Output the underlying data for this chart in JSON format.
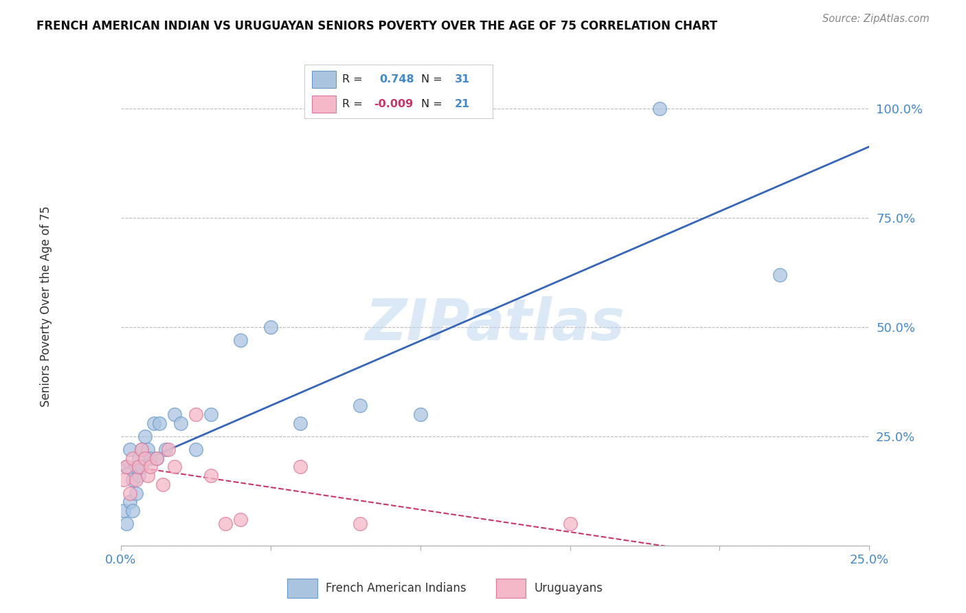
{
  "title": "FRENCH AMERICAN INDIAN VS URUGUAYAN SENIORS POVERTY OVER THE AGE OF 75 CORRELATION CHART",
  "source": "Source: ZipAtlas.com",
  "ylabel": "Seniors Poverty Over the Age of 75",
  "watermark": "ZIPatlas",
  "blue_R": 0.748,
  "blue_N": 31,
  "pink_R": -0.009,
  "pink_N": 21,
  "blue_color": "#aac4e0",
  "blue_edge_color": "#6699cc",
  "blue_line_color": "#3366bb",
  "pink_color": "#f5b8c8",
  "pink_edge_color": "#dd7799",
  "pink_line_color": "#cc3366",
  "background_color": "#ffffff",
  "grid_color": "#bbbbbb",
  "axis_label_color": "#4488cc",
  "title_color": "#111111",
  "blue_x": [
    0.001,
    0.002,
    0.002,
    0.003,
    0.003,
    0.004,
    0.004,
    0.005,
    0.005,
    0.006,
    0.006,
    0.007,
    0.007,
    0.008,
    0.009,
    0.01,
    0.011,
    0.012,
    0.013,
    0.015,
    0.018,
    0.02,
    0.025,
    0.03,
    0.04,
    0.05,
    0.06,
    0.08,
    0.1,
    0.18,
    0.22
  ],
  "blue_y": [
    0.08,
    0.05,
    0.18,
    0.1,
    0.22,
    0.08,
    0.15,
    0.18,
    0.12,
    0.2,
    0.16,
    0.22,
    0.18,
    0.25,
    0.22,
    0.2,
    0.28,
    0.2,
    0.28,
    0.22,
    0.3,
    0.28,
    0.22,
    0.3,
    0.47,
    0.5,
    0.28,
    0.32,
    0.3,
    1.0,
    0.62
  ],
  "pink_x": [
    0.001,
    0.002,
    0.003,
    0.004,
    0.005,
    0.006,
    0.007,
    0.008,
    0.009,
    0.01,
    0.012,
    0.014,
    0.016,
    0.018,
    0.025,
    0.03,
    0.035,
    0.04,
    0.06,
    0.08,
    0.15
  ],
  "pink_y": [
    0.15,
    0.18,
    0.12,
    0.2,
    0.15,
    0.18,
    0.22,
    0.2,
    0.16,
    0.18,
    0.2,
    0.14,
    0.22,
    0.18,
    0.3,
    0.16,
    0.05,
    0.06,
    0.18,
    0.05,
    0.05
  ],
  "xlim": [
    0.0,
    0.25
  ],
  "ylim": [
    0.0,
    1.08
  ],
  "yticks": [
    0.0,
    0.25,
    0.5,
    0.75,
    1.0
  ],
  "ytick_labels": [
    "",
    "25.0%",
    "50.0%",
    "75.0%",
    "100.0%"
  ],
  "xticks": [
    0.0,
    0.05,
    0.1,
    0.15,
    0.2,
    0.25
  ],
  "xtick_labels": [
    "0.0%",
    "",
    "",
    "",
    "",
    "25.0%"
  ],
  "legend_R1": "0.748",
  "legend_R2": "-0.009",
  "legend_N1": "31",
  "legend_N2": "21"
}
